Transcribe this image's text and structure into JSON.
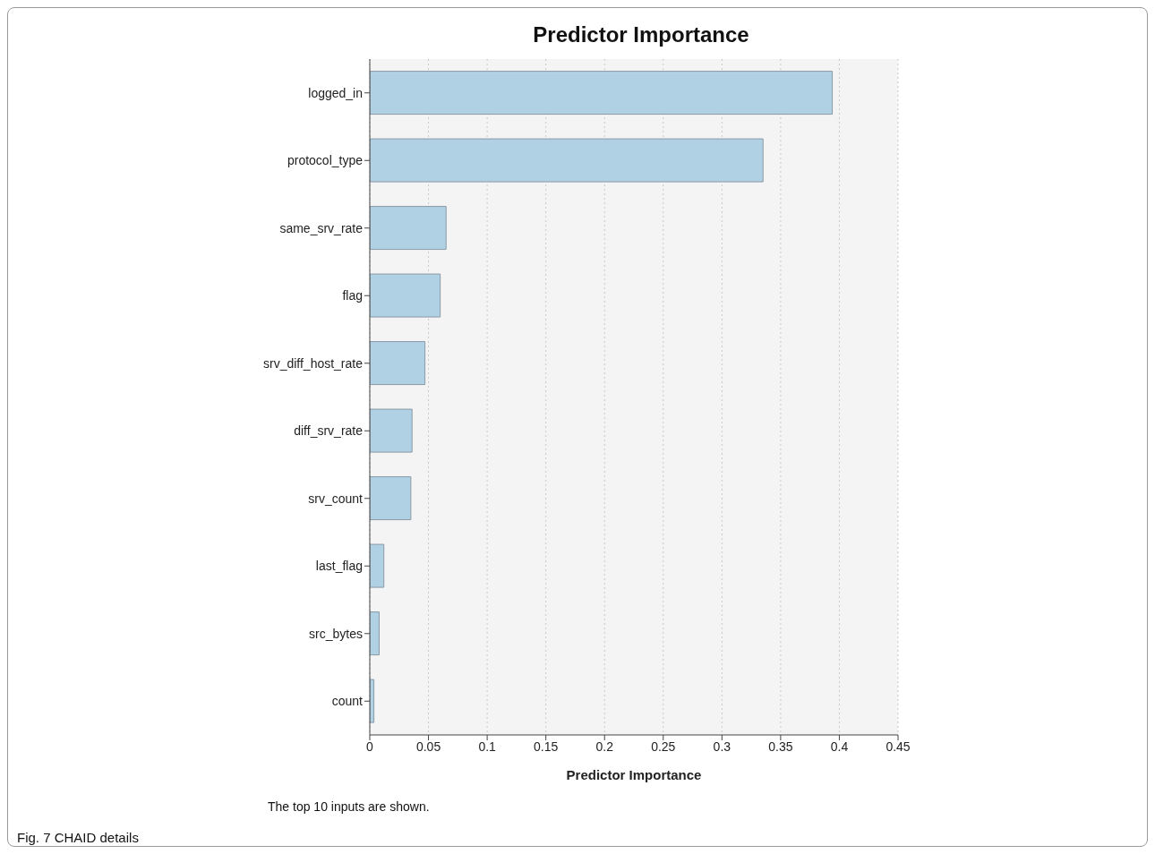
{
  "chart_data": {
    "type": "bar",
    "orientation": "horizontal",
    "title": "Predictor Importance",
    "xlabel": "Predictor Importance",
    "categories": [
      "logged_in",
      "protocol_type",
      "same_srv_rate",
      "flag",
      "srv_diff_host_rate",
      "diff_srv_rate",
      "srv_count",
      "last_flag",
      "src_bytes",
      "count"
    ],
    "values": [
      0.394,
      0.335,
      0.065,
      0.06,
      0.047,
      0.036,
      0.035,
      0.012,
      0.008,
      0.0035
    ],
    "color": "#b0d0e3",
    "xlim": [
      0,
      0.45
    ],
    "xticks": [
      0,
      0.05,
      0.1,
      0.15,
      0.2,
      0.25,
      0.3,
      0.35,
      0.4,
      0.45
    ],
    "grid": "x",
    "annotations": [
      "The top 10 inputs are shown.",
      "Fig. 7 CHAID details"
    ]
  }
}
